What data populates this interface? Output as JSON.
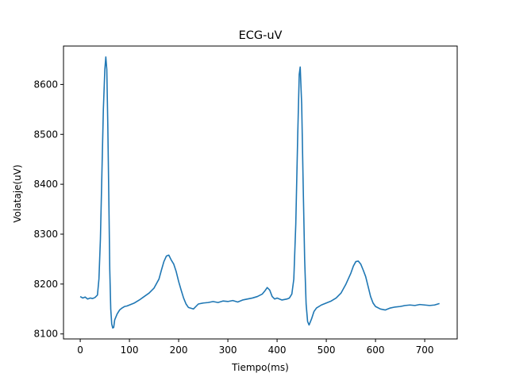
{
  "chart_data": {
    "type": "line",
    "title": "ECG-uV",
    "xlabel": "Tiempo(ms)",
    "ylabel": "Volataje(uV)",
    "xlim": [
      -34,
      766
    ],
    "ylim": [
      8090,
      8677
    ],
    "xticks": [
      0,
      100,
      200,
      300,
      400,
      500,
      600,
      700
    ],
    "yticks": [
      8100,
      8200,
      8300,
      8400,
      8500,
      8600
    ],
    "grid": false,
    "line_color": "#1f77b4",
    "series": [
      {
        "x": [
          0,
          5,
          10,
          15,
          20,
          25,
          30,
          35,
          38,
          41,
          44,
          47,
          50,
          52,
          54,
          56,
          58,
          60,
          62,
          64,
          66,
          68,
          70,
          75,
          80,
          85,
          90,
          95,
          100,
          110,
          120,
          130,
          140,
          150,
          160,
          165,
          170,
          175,
          180,
          185,
          190,
          195,
          200,
          205,
          210,
          215,
          220,
          230,
          240,
          250,
          260,
          270,
          280,
          290,
          300,
          310,
          320,
          330,
          340,
          350,
          360,
          370,
          375,
          380,
          385,
          390,
          395,
          400,
          405,
          410,
          415,
          420,
          425,
          430,
          434,
          438,
          442,
          445,
          447,
          450,
          453,
          456,
          459,
          462,
          465,
          470,
          475,
          480,
          490,
          500,
          510,
          520,
          530,
          540,
          550,
          555,
          560,
          565,
          570,
          575,
          580,
          585,
          590,
          595,
          600,
          610,
          620,
          630,
          640,
          650,
          660,
          670,
          680,
          690,
          700,
          710,
          720,
          730
        ],
        "y": [
          8175,
          8172,
          8174,
          8170,
          8172,
          8171,
          8173,
          8178,
          8210,
          8290,
          8420,
          8550,
          8630,
          8655,
          8630,
          8520,
          8380,
          8230,
          8150,
          8120,
          8112,
          8113,
          8128,
          8140,
          8148,
          8152,
          8155,
          8156,
          8158,
          8162,
          8168,
          8175,
          8182,
          8192,
          8210,
          8228,
          8245,
          8256,
          8258,
          8248,
          8240,
          8225,
          8205,
          8188,
          8172,
          8160,
          8153,
          8150,
          8160,
          8162,
          8163,
          8165,
          8163,
          8166,
          8165,
          8167,
          8164,
          8168,
          8170,
          8172,
          8175,
          8180,
          8186,
          8193,
          8188,
          8175,
          8170,
          8172,
          8170,
          8168,
          8169,
          8170,
          8172,
          8180,
          8210,
          8320,
          8500,
          8620,
          8635,
          8560,
          8400,
          8250,
          8160,
          8125,
          8118,
          8130,
          8145,
          8152,
          8158,
          8162,
          8166,
          8172,
          8182,
          8200,
          8222,
          8236,
          8245,
          8246,
          8240,
          8228,
          8215,
          8195,
          8175,
          8162,
          8155,
          8150,
          8148,
          8152,
          8154,
          8155,
          8157,
          8158,
          8157,
          8159,
          8158,
          8157,
          8158,
          8161
        ]
      }
    ]
  }
}
